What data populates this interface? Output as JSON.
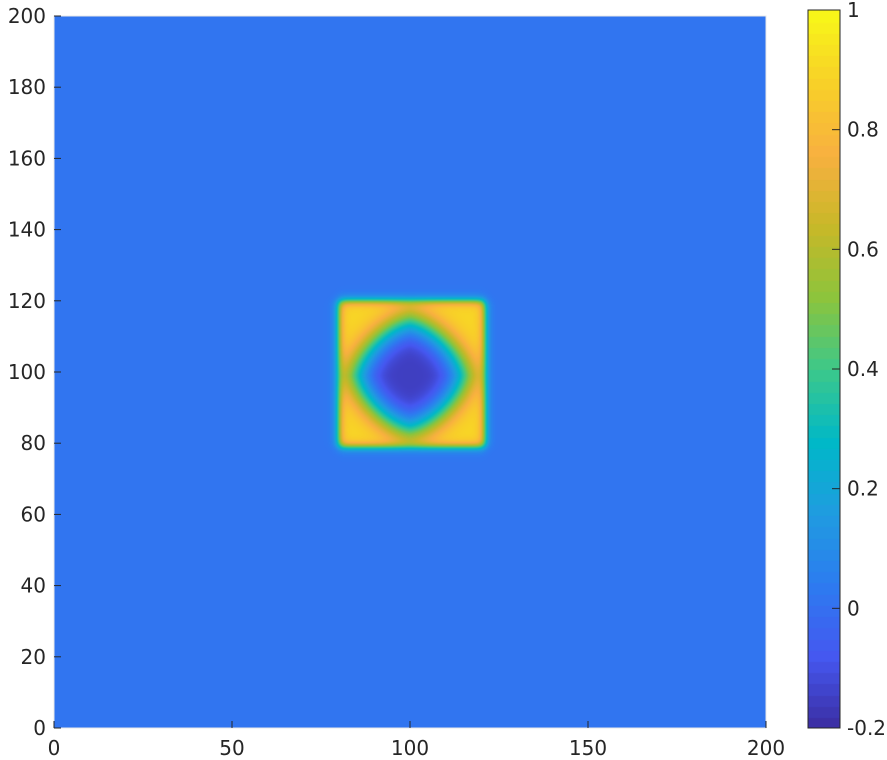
{
  "chart_data": {
    "type": "heatmap",
    "title": "",
    "xlabel": "",
    "ylabel": "",
    "xlim": [
      0,
      200
    ],
    "ylim": [
      0,
      200
    ],
    "clim": [
      -0.2,
      1
    ],
    "colormap": "parula",
    "grid": false,
    "x_ticks": [
      "0",
      "50",
      "100",
      "150",
      "200"
    ],
    "y_ticks": [
      "0",
      "20",
      "40",
      "60",
      "80",
      "100",
      "120",
      "140",
      "160",
      "180",
      "200"
    ],
    "colorbar_ticks": [
      "-0.2",
      "0",
      "0.2",
      "0.4",
      "0.6",
      "0.8",
      "1"
    ],
    "colorbar_position": "right",
    "field": {
      "background_value": 0.02,
      "square": {
        "x_range": [
          80,
          121
        ],
        "y_range": [
          79,
          120
        ],
        "value": 0.9
      },
      "center": {
        "x": 100,
        "y": 99,
        "min_value": -0.15
      },
      "ring_value": 0.35
    }
  },
  "colors": {
    "parula_stops": [
      "#3b2da0",
      "#4557f0",
      "#2d7bf0",
      "#1f9ce0",
      "#00b8c8",
      "#3cc88a",
      "#8cc43c",
      "#c8b828",
      "#f8b040",
      "#f8d028",
      "#f8f818"
    ]
  }
}
